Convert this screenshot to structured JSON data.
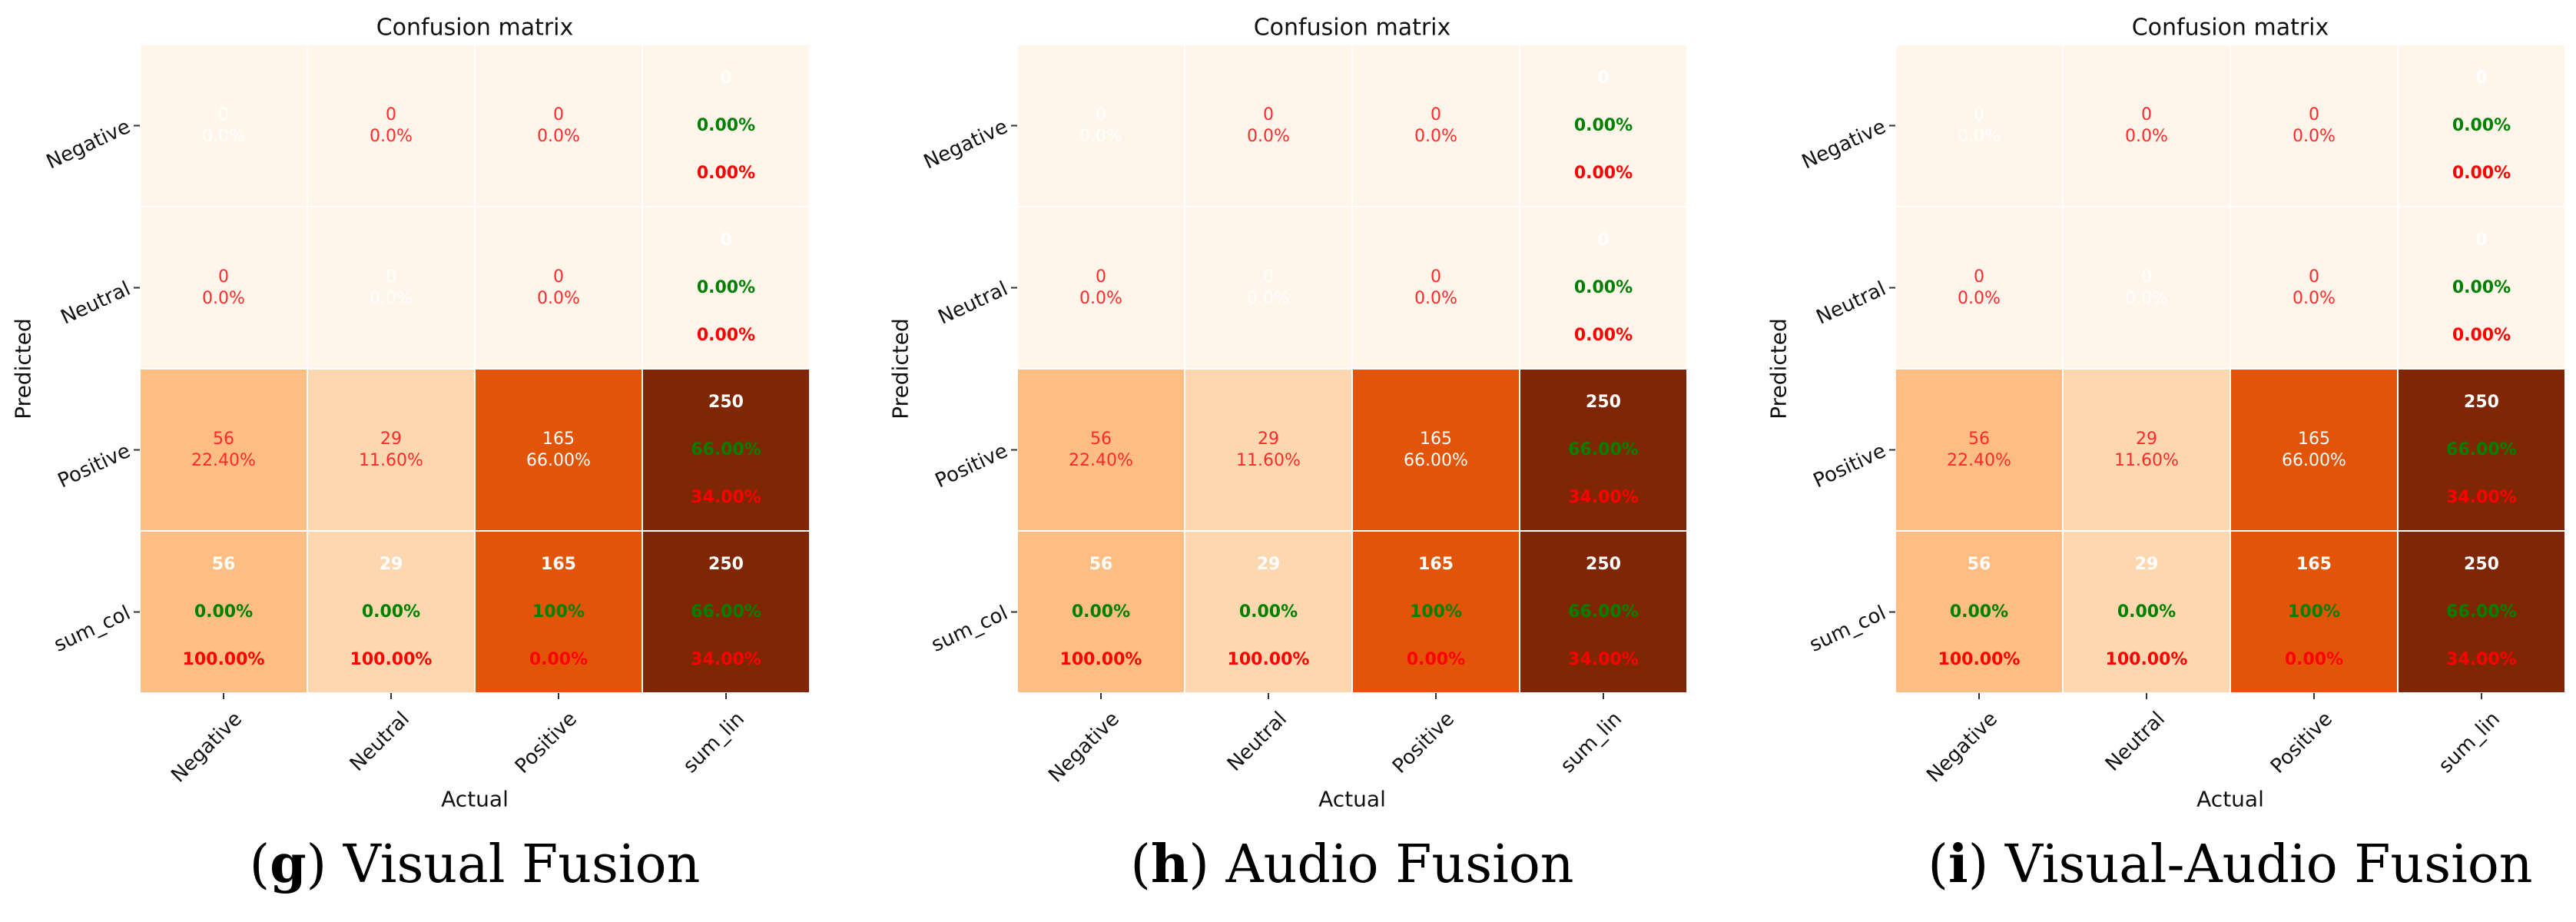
{
  "chart_data": [
    {
      "type": "heatmap",
      "title": "Confusion matrix",
      "caption_letter": "g",
      "caption_text": " Visual Fusion",
      "xlabel": "Actual",
      "ylabel": "Predicted",
      "x_categories": [
        "Negative",
        "Neutral",
        "Positive",
        "sum_lin"
      ],
      "y_categories": [
        "Negative",
        "Neutral",
        "Positive",
        "sum_col"
      ],
      "counts": [
        [
          0,
          0,
          0,
          0
        ],
        [
          0,
          0,
          0,
          0
        ],
        [
          56,
          29,
          165,
          250
        ],
        [
          56,
          29,
          165,
          250
        ]
      ],
      "percents": [
        [
          "0.0%",
          "0.0%",
          "0.0%"
        ],
        [
          "0.0%",
          "0.0%",
          "0.0%"
        ],
        [
          "22.40%",
          "11.60%",
          "66.00%"
        ]
      ],
      "sum_lin": [
        {
          "count": "0",
          "correct": "0.00%",
          "error": "0.00%"
        },
        {
          "count": "0",
          "correct": "0.00%",
          "error": "0.00%"
        },
        {
          "count": "250",
          "correct": "66.00%",
          "error": "34.00%"
        }
      ],
      "sum_col": [
        {
          "count": "56",
          "correct": "0.00%",
          "error": "100.00%"
        },
        {
          "count": "29",
          "correct": "0.00%",
          "error": "100.00%"
        },
        {
          "count": "165",
          "correct": "100%",
          "error": "0.00%"
        },
        {
          "count": "250",
          "correct": "66.00%",
          "error": "34.00%"
        }
      ],
      "colorscale": [
        "#fff5eb",
        "#fdd0a2",
        "#fdae6b",
        "#fd8d3c",
        "#f16913",
        "#d94801",
        "#a63603",
        "#7f2704"
      ],
      "color_max": 250
    },
    {
      "type": "heatmap",
      "title": "Confusion matrix",
      "caption_letter": "h",
      "caption_text": " Audio Fusion",
      "xlabel": "Actual",
      "ylabel": "Predicted",
      "x_categories": [
        "Negative",
        "Neutral",
        "Positive",
        "sum_lin"
      ],
      "y_categories": [
        "Negative",
        "Neutral",
        "Positive",
        "sum_col"
      ],
      "counts": [
        [
          0,
          0,
          0,
          0
        ],
        [
          0,
          0,
          0,
          0
        ],
        [
          56,
          29,
          165,
          250
        ],
        [
          56,
          29,
          165,
          250
        ]
      ],
      "percents": [
        [
          "0.0%",
          "0.0%",
          "0.0%"
        ],
        [
          "0.0%",
          "0.0%",
          "0.0%"
        ],
        [
          "22.40%",
          "11.60%",
          "66.00%"
        ]
      ],
      "sum_lin": [
        {
          "count": "0",
          "correct": "0.00%",
          "error": "0.00%"
        },
        {
          "count": "0",
          "correct": "0.00%",
          "error": "0.00%"
        },
        {
          "count": "250",
          "correct": "66.00%",
          "error": "34.00%"
        }
      ],
      "sum_col": [
        {
          "count": "56",
          "correct": "0.00%",
          "error": "100.00%"
        },
        {
          "count": "29",
          "correct": "0.00%",
          "error": "100.00%"
        },
        {
          "count": "165",
          "correct": "100%",
          "error": "0.00%"
        },
        {
          "count": "250",
          "correct": "66.00%",
          "error": "34.00%"
        }
      ],
      "colorscale": [
        "#fff5eb",
        "#fdd0a2",
        "#fdae6b",
        "#fd8d3c",
        "#f16913",
        "#d94801",
        "#a63603",
        "#7f2704"
      ],
      "color_max": 250
    },
    {
      "type": "heatmap",
      "title": "Confusion matrix",
      "caption_letter": "i",
      "caption_text": " Visual-Audio Fusion",
      "xlabel": "Actual",
      "ylabel": "Predicted",
      "x_categories": [
        "Negative",
        "Neutral",
        "Positive",
        "sum_lin"
      ],
      "y_categories": [
        "Negative",
        "Neutral",
        "Positive",
        "sum_col"
      ],
      "counts": [
        [
          0,
          0,
          0,
          0
        ],
        [
          0,
          0,
          0,
          0
        ],
        [
          56,
          29,
          165,
          250
        ],
        [
          56,
          29,
          165,
          250
        ]
      ],
      "percents": [
        [
          "0.0%",
          "0.0%",
          "0.0%"
        ],
        [
          "0.0%",
          "0.0%",
          "0.0%"
        ],
        [
          "22.40%",
          "11.60%",
          "66.00%"
        ]
      ],
      "sum_lin": [
        {
          "count": "0",
          "correct": "0.00%",
          "error": "0.00%"
        },
        {
          "count": "0",
          "correct": "0.00%",
          "error": "0.00%"
        },
        {
          "count": "250",
          "correct": "66.00%",
          "error": "34.00%"
        }
      ],
      "sum_col": [
        {
          "count": "56",
          "correct": "0.00%",
          "error": "100.00%"
        },
        {
          "count": "29",
          "correct": "0.00%",
          "error": "100.00%"
        },
        {
          "count": "165",
          "correct": "100%",
          "error": "0.00%"
        },
        {
          "count": "250",
          "correct": "66.00%",
          "error": "34.00%"
        }
      ],
      "colorscale": [
        "#fff5eb",
        "#fdd0a2",
        "#fdae6b",
        "#fd8d3c",
        "#f16913",
        "#d94801",
        "#a63603",
        "#7f2704"
      ],
      "color_max": 250
    }
  ],
  "colors": {
    "cell_text": "#ff2a2a",
    "diag_text": "#ffffff",
    "correct_text": "#008000",
    "error_text": "#ff0000",
    "sum_count_text": "#ffffff"
  }
}
